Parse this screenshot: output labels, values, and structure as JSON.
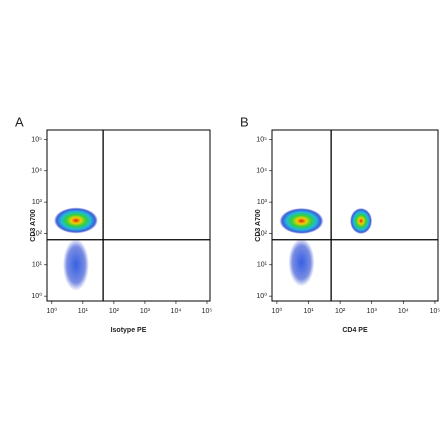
{
  "chart_data": [
    {
      "type": "scatter",
      "title": "A",
      "x_label": "Isotype PE",
      "y_label": "CD3 A700",
      "log": true,
      "xlim": [
        0.7,
        125000
      ],
      "ylim": [
        0.7,
        200000
      ],
      "xticks": [
        {
          "value": 1,
          "label": "10⁰"
        },
        {
          "value": 10,
          "label": "10¹"
        },
        {
          "value": 100,
          "label": "10²"
        },
        {
          "value": 1000,
          "label": "10³"
        },
        {
          "value": 10000,
          "label": "10⁴"
        },
        {
          "value": 100000,
          "label": "10⁵"
        }
      ],
      "yticks": [
        {
          "value": 1,
          "label": "10⁰"
        },
        {
          "value": 10,
          "label": "10¹"
        },
        {
          "value": 100,
          "label": "10²"
        },
        {
          "value": 1000,
          "label": "10³"
        },
        {
          "value": 10000,
          "label": "10⁴"
        },
        {
          "value": 100000,
          "label": "10⁵"
        }
      ],
      "xgate": 45,
      "ygate": 63,
      "x": [
        6,
        6
      ],
      "y": [
        260,
        10
      ]
    },
    {
      "type": "scatter",
      "title": "B",
      "x_label": "CD4 PE",
      "y_label": "CD3 A700",
      "log": true,
      "xlim": [
        0.7,
        125000
      ],
      "ylim": [
        0.7,
        200000
      ],
      "xticks": [
        {
          "value": 1,
          "label": "10⁰"
        },
        {
          "value": 10,
          "label": "10¹"
        },
        {
          "value": 100,
          "label": "10²"
        },
        {
          "value": 1000,
          "label": "10³"
        },
        {
          "value": 10000,
          "label": "10⁴"
        },
        {
          "value": 100000,
          "label": "10⁵"
        }
      ],
      "yticks": [
        {
          "value": 1,
          "label": "10⁰"
        },
        {
          "value": 10,
          "label": "10¹"
        },
        {
          "value": 100,
          "label": "10²"
        },
        {
          "value": 1000,
          "label": "10³"
        },
        {
          "value": 10000,
          "label": "10⁴"
        },
        {
          "value": 100000,
          "label": "10⁵"
        }
      ],
      "xgate": 52,
      "ygate": 63,
      "x": [
        6,
        6,
        460
      ],
      "y": [
        250,
        12,
        250
      ]
    }
  ]
}
